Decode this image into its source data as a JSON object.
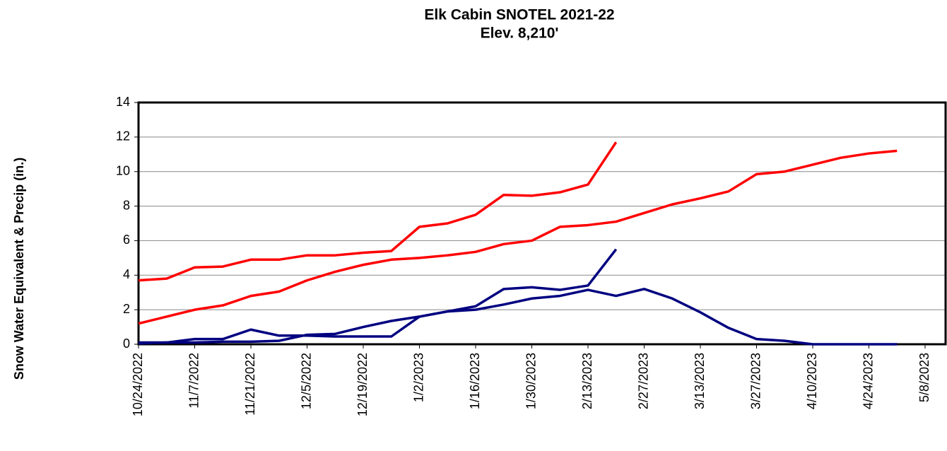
{
  "chart_data": {
    "type": "line",
    "title": "Elk Cabin SNOTEL  2021-22",
    "subtitle": "Elev. 8,210'",
    "y_label": "Snow Water Equivalent & Precip (in.)",
    "categories": [
      "10/24/2022",
      null,
      "11/7/2022",
      null,
      "11/21/2022",
      null,
      "12/5/2022",
      null,
      "12/19/2022",
      null,
      "1/2/2023",
      null,
      "1/16/2023",
      null,
      "1/30/2023",
      null,
      "2/13/2023",
      null,
      "2/27/2023",
      null,
      "3/13/2023",
      null,
      "3/27/2023",
      null,
      "4/10/2023",
      null,
      "4/24/2023",
      null,
      "5/8/2023"
    ],
    "series": [
      {
        "color": "#ff0000",
        "values": [
          3.7,
          3.8,
          4.45,
          4.5,
          4.9,
          4.9,
          5.15,
          5.15,
          5.3,
          5.4,
          6.8,
          7.0,
          7.5,
          8.65,
          8.6,
          8.8,
          9.25,
          11.7,
          null,
          null,
          null,
          null,
          null,
          null,
          null,
          null,
          null,
          null,
          null
        ]
      },
      {
        "color": "#ff0000",
        "values": [
          1.2,
          1.6,
          2.0,
          2.25,
          2.8,
          3.05,
          3.7,
          4.2,
          4.6,
          4.9,
          5.0,
          5.15,
          5.35,
          5.8,
          6.0,
          6.8,
          6.9,
          7.1,
          7.6,
          8.1,
          8.45,
          8.85,
          9.85,
          10.0,
          10.4,
          10.8,
          11.05,
          11.2,
          null
        ]
      },
      {
        "color": "#000080",
        "values": [
          0.1,
          0.1,
          0.3,
          0.3,
          0.85,
          0.5,
          0.5,
          0.45,
          0.45,
          0.45,
          1.6,
          1.9,
          2.2,
          3.2,
          3.3,
          3.15,
          3.4,
          5.5,
          null,
          null,
          null,
          null,
          null,
          null,
          null,
          null,
          null,
          null,
          null
        ]
      },
      {
        "color": "#000080",
        "values": [
          0.05,
          0.1,
          0.1,
          0.15,
          0.15,
          0.2,
          0.55,
          0.6,
          1.0,
          1.35,
          1.6,
          1.9,
          2.0,
          2.3,
          2.65,
          2.8,
          3.15,
          2.8,
          3.2,
          2.65,
          1.85,
          0.95,
          0.3,
          0.2,
          0,
          0,
          0,
          0,
          null
        ]
      }
    ],
    "ylim": [
      0,
      14
    ],
    "yticks": [
      0,
      2,
      4,
      6,
      8,
      10,
      12,
      14
    ],
    "grid": true
  }
}
